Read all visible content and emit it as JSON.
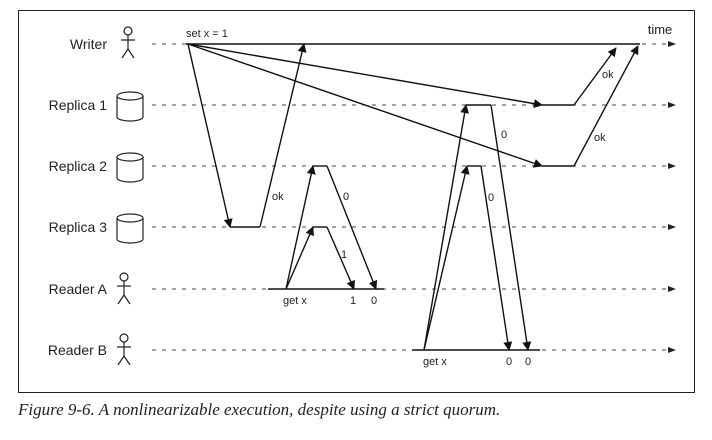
{
  "lanes": [
    {
      "label": "Writer",
      "icon": "person-icon"
    },
    {
      "label": "Replica 1",
      "icon": "database-icon"
    },
    {
      "label": "Replica 2",
      "icon": "database-icon"
    },
    {
      "label": "Replica 3",
      "icon": "database-icon"
    },
    {
      "label": "Reader A",
      "icon": "person-icon"
    },
    {
      "label": "Reader B",
      "icon": "person-icon"
    }
  ],
  "time_label": "time",
  "annotations": {
    "set_x": "set x = 1",
    "ok_replica3": "ok",
    "ok_replica1": "ok",
    "ok_replica2": "ok",
    "readerA_get": "get x",
    "readerA_res1": "1",
    "readerA_res2": "0",
    "readerB_get": "get x",
    "readerB_res1": "0",
    "readerB_res2": "0",
    "val_replica2_to_A": "0",
    "val_replica3_to_A": "1",
    "val_replica1_to_B": "0",
    "val_replica2_to_B": "0"
  },
  "caption": "Figure 9-6. A nonlinearizable execution, despite using a strict quorum."
}
